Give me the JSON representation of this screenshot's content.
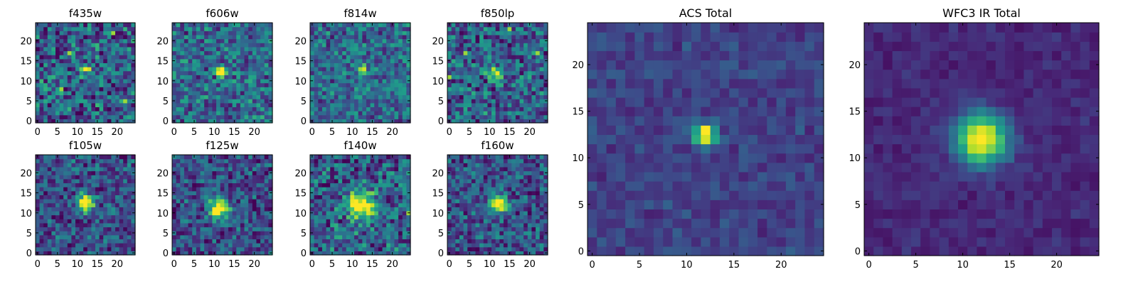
{
  "colormap": "viridis",
  "colormap_stops": [
    "#440154",
    "#482777",
    "#3e4989",
    "#31688e",
    "#26828e",
    "#1f9e89",
    "#35b779",
    "#6ece58",
    "#b5de2b",
    "#fde725"
  ],
  "frame_color": "#000000",
  "chart_data": [
    {
      "type": "heatmap",
      "title": "f435w",
      "grid": [
        25,
        25
      ],
      "x_ticks": [
        0,
        5,
        10,
        15,
        20
      ],
      "y_ticks": [
        0,
        5,
        10,
        15,
        20
      ],
      "xlim": [
        0,
        25
      ],
      "ylim": [
        0,
        25
      ],
      "origin": "lower",
      "seed": 11,
      "peak": [
        12,
        13
      ],
      "noise": 0.3,
      "spread": 0.6,
      "sigma": 0.7,
      "amplitude": 0.75,
      "extra_hot": [
        [
          6,
          8
        ],
        [
          8,
          17
        ],
        [
          19,
          22
        ],
        [
          22,
          5
        ]
      ]
    },
    {
      "type": "heatmap",
      "title": "f606w",
      "grid": [
        25,
        25
      ],
      "x_ticks": [
        0,
        5,
        10,
        15,
        20
      ],
      "y_ticks": [
        0,
        5,
        10,
        15,
        20
      ],
      "xlim": [
        0,
        25
      ],
      "ylim": [
        0,
        25
      ],
      "origin": "lower",
      "seed": 22,
      "peak": [
        12,
        12.5
      ],
      "noise": 0.35,
      "spread": 0.5,
      "sigma": 0.9,
      "amplitude": 0.9,
      "extra_hot": []
    },
    {
      "type": "heatmap",
      "title": "f814w",
      "grid": [
        25,
        25
      ],
      "x_ticks": [
        0,
        5,
        10,
        15,
        20
      ],
      "y_ticks": [
        0,
        5,
        10,
        15,
        20
      ],
      "xlim": [
        0,
        25
      ],
      "ylim": [
        0,
        25
      ],
      "origin": "lower",
      "seed": 33,
      "peak": [
        12.5,
        13
      ],
      "noise": 0.35,
      "spread": 0.45,
      "sigma": 0.6,
      "amplitude": 0.95,
      "extra_hot": []
    },
    {
      "type": "heatmap",
      "title": "f850lp",
      "grid": [
        25,
        25
      ],
      "x_ticks": [
        0,
        5,
        10,
        15,
        20
      ],
      "y_ticks": [
        0,
        5,
        10,
        15,
        20
      ],
      "xlim": [
        0,
        25
      ],
      "ylim": [
        0,
        25
      ],
      "origin": "lower",
      "seed": 44,
      "peak": [
        11.5,
        12
      ],
      "noise": 0.3,
      "spread": 0.55,
      "sigma": 1.3,
      "amplitude": 0.55,
      "extra_hot": [
        [
          4,
          17
        ],
        [
          22,
          17
        ],
        [
          15,
          23
        ],
        [
          0,
          11
        ]
      ]
    },
    {
      "type": "heatmap",
      "title": "f105w",
      "grid": [
        25,
        25
      ],
      "x_ticks": [
        0,
        5,
        10,
        15,
        20
      ],
      "y_ticks": [
        0,
        5,
        10,
        15,
        20
      ],
      "xlim": [
        0,
        25
      ],
      "ylim": [
        0,
        25
      ],
      "origin": "lower",
      "seed": 55,
      "peak": [
        12,
        12.5
      ],
      "noise": 0.25,
      "spread": 0.45,
      "sigma": 1.4,
      "amplitude": 0.95,
      "extra_hot": []
    },
    {
      "type": "heatmap",
      "title": "f125w",
      "grid": [
        25,
        25
      ],
      "x_ticks": [
        0,
        5,
        10,
        15,
        20
      ],
      "y_ticks": [
        0,
        5,
        10,
        15,
        20
      ],
      "xlim": [
        0,
        25
      ],
      "ylim": [
        0,
        25
      ],
      "origin": "lower",
      "seed": 66,
      "peak": [
        11,
        11
      ],
      "noise": 0.25,
      "spread": 0.45,
      "sigma": 1.7,
      "amplitude": 0.85,
      "extra_hot": []
    },
    {
      "type": "heatmap",
      "title": "f140w",
      "grid": [
        25,
        25
      ],
      "x_ticks": [
        0,
        5,
        10,
        15,
        20
      ],
      "y_ticks": [
        0,
        5,
        10,
        15,
        20
      ],
      "xlim": [
        0,
        25
      ],
      "ylim": [
        0,
        25
      ],
      "origin": "lower",
      "seed": 77,
      "peak": [
        12,
        12
      ],
      "noise": 0.3,
      "spread": 0.55,
      "sigma": 2.3,
      "amplitude": 0.8,
      "extra_hot": [
        [
          24,
          10
        ]
      ]
    },
    {
      "type": "heatmap",
      "title": "f160w",
      "grid": [
        25,
        25
      ],
      "x_ticks": [
        0,
        5,
        10,
        15,
        20
      ],
      "y_ticks": [
        0,
        5,
        10,
        15,
        20
      ],
      "xlim": [
        0,
        25
      ],
      "ylim": [
        0,
        25
      ],
      "origin": "lower",
      "seed": 88,
      "peak": [
        12.5,
        12.5
      ],
      "noise": 0.25,
      "spread": 0.45,
      "sigma": 1.5,
      "amplitude": 0.95,
      "extra_hot": []
    },
    {
      "type": "heatmap",
      "title": "ACS Total",
      "grid": [
        25,
        25
      ],
      "x_ticks": [
        0,
        5,
        10,
        15,
        20
      ],
      "y_ticks": [
        0,
        5,
        10,
        15,
        20
      ],
      "xlim": [
        0,
        25
      ],
      "ylim": [
        0,
        25
      ],
      "origin": "lower",
      "seed": 99,
      "peak": [
        12,
        12.5
      ],
      "noise": 0.2,
      "spread": 0.18,
      "sigma": 0.8,
      "amplitude": 0.95,
      "extra_hot": []
    },
    {
      "type": "heatmap",
      "title": "WFC3 IR Total",
      "grid": [
        25,
        25
      ],
      "x_ticks": [
        0,
        5,
        10,
        15,
        20
      ],
      "y_ticks": [
        0,
        5,
        10,
        15,
        20
      ],
      "xlim": [
        0,
        25
      ],
      "ylim": [
        0,
        25
      ],
      "origin": "lower",
      "seed": 111,
      "peak": [
        12,
        12
      ],
      "noise": 0.12,
      "spread": 0.12,
      "sigma": 1.9,
      "amplitude": 0.95,
      "extra_hot": []
    }
  ]
}
